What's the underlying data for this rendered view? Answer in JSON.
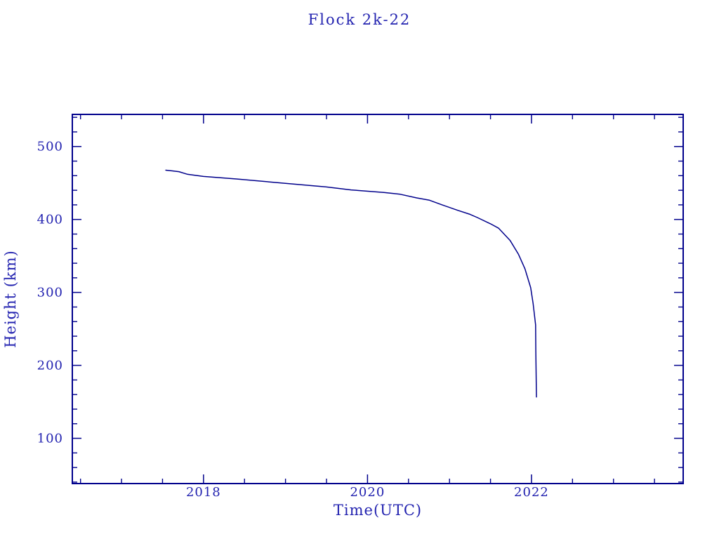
{
  "page": {
    "background": "#ffffff"
  },
  "chart_data": {
    "type": "line",
    "title": "Flock 2k-22",
    "xlabel": "Time(UTC)",
    "ylabel": "Height (km)",
    "xlim": [
      2016.4,
      2023.85
    ],
    "ylim": [
      38,
      544
    ],
    "x_major_ticks": [
      2018,
      2020,
      2022
    ],
    "x_tick_labels": [
      "2018",
      "2020",
      "2022"
    ],
    "x_minor_step": 0.5,
    "y_major_ticks": [
      100,
      200,
      300,
      400,
      500
    ],
    "y_tick_labels": [
      "100",
      "200",
      "300",
      "400",
      "500"
    ],
    "y_minor_step": 20,
    "grid": false,
    "legend": false,
    "ink": "#00008c",
    "text_color": "#2323b0",
    "line_color": "#00008b",
    "series": [
      {
        "name": "Flock 2k-22 orbital height",
        "points": [
          [
            2017.54,
            467.5
          ],
          [
            2017.62,
            466.6
          ],
          [
            2017.7,
            465.5
          ],
          [
            2017.8,
            462.0
          ],
          [
            2018.0,
            459.0
          ],
          [
            2018.4,
            455.5
          ],
          [
            2018.95,
            450.0
          ],
          [
            2019.5,
            444.5
          ],
          [
            2019.8,
            440.5
          ],
          [
            2020.2,
            437.0
          ],
          [
            2020.4,
            434.5
          ],
          [
            2020.6,
            429.5
          ],
          [
            2020.75,
            426.5
          ],
          [
            2020.91,
            420.0
          ],
          [
            2021.1,
            412.5
          ],
          [
            2021.25,
            407.0
          ],
          [
            2021.34,
            402.6
          ],
          [
            2021.5,
            394.0
          ],
          [
            2021.6,
            388.0
          ],
          [
            2021.74,
            371.0
          ],
          [
            2021.84,
            352.5
          ],
          [
            2021.92,
            332.5
          ],
          [
            2021.99,
            306.5
          ],
          [
            2022.02,
            284.5
          ],
          [
            2022.05,
            255.5
          ],
          [
            2022.053,
            220.0
          ],
          [
            2022.06,
            156.5
          ]
        ]
      }
    ]
  }
}
